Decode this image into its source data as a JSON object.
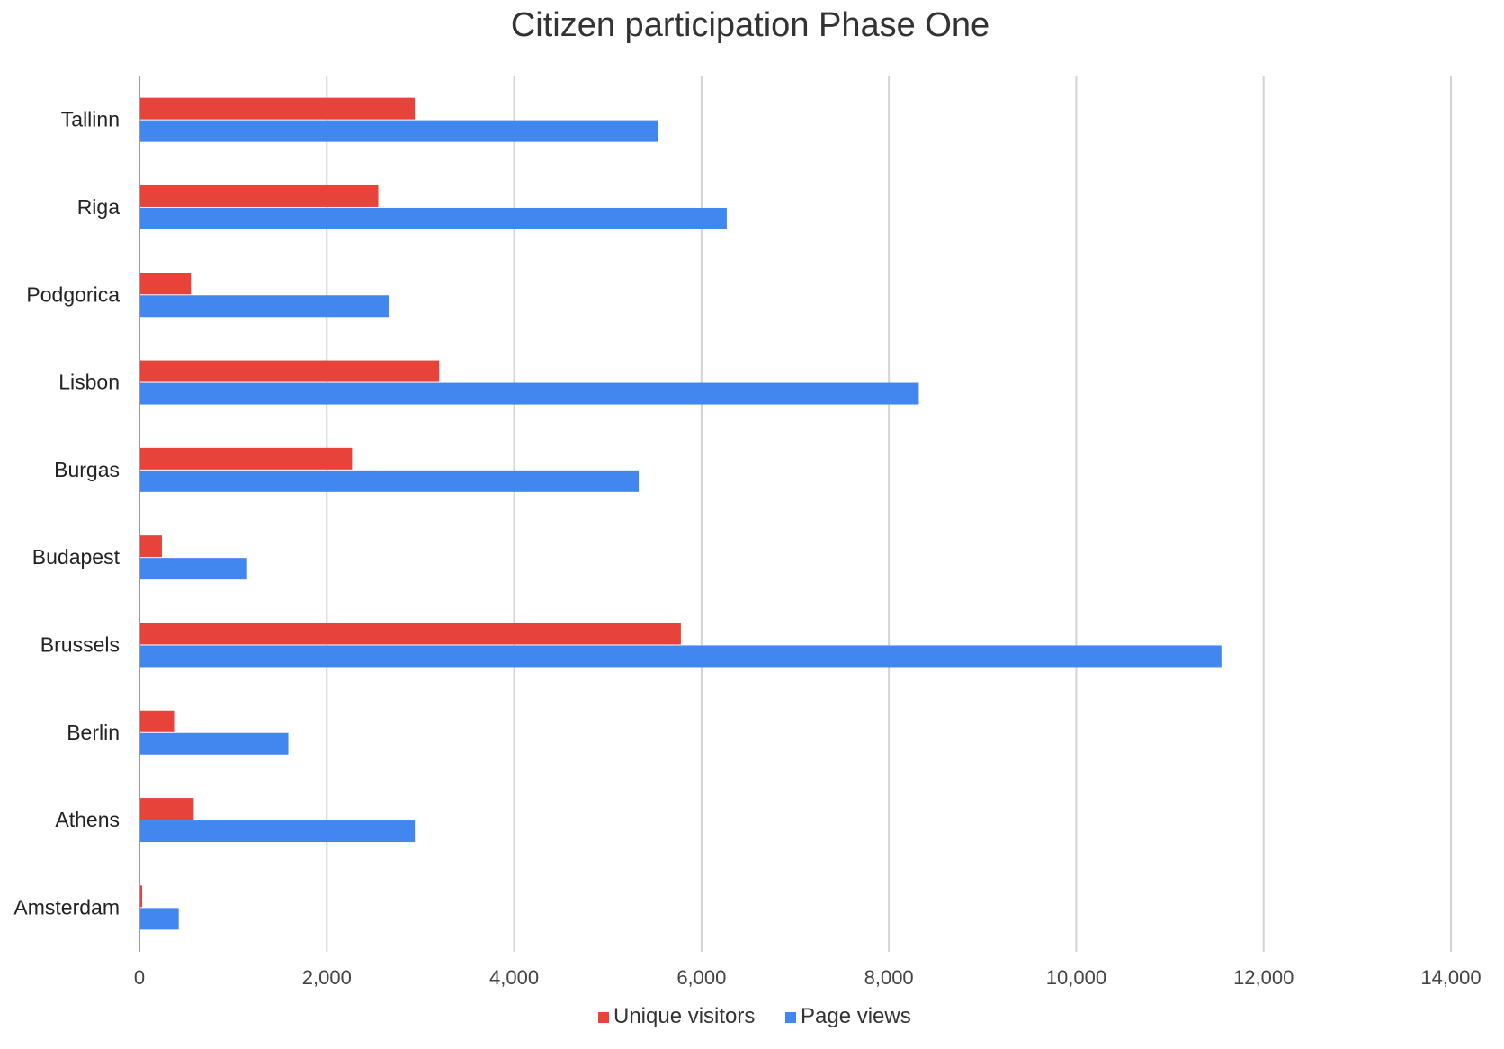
{
  "chart_data": {
    "type": "bar",
    "orientation": "horizontal",
    "title": "Citizen participation Phase One",
    "xlabel": "",
    "ylabel": "",
    "categories": [
      "Tallinn",
      "Riga",
      "Podgorica",
      "Lisbon",
      "Burgas",
      "Budapest",
      "Brussels",
      "Berlin",
      "Athens",
      "Amsterdam"
    ],
    "series": [
      {
        "name": "Unique visitors",
        "color": "#e8433b",
        "values": [
          2930,
          2540,
          540,
          3190,
          2260,
          230,
          5770,
          360,
          570,
          20
        ]
      },
      {
        "name": "Page views",
        "color": "#4286f0",
        "values": [
          5530,
          6260,
          2650,
          8310,
          5320,
          1140,
          11540,
          1580,
          2930,
          410
        ]
      }
    ],
    "xlim": [
      0,
      14000
    ],
    "xticks": [
      0,
      2000,
      4000,
      6000,
      8000,
      10000,
      12000,
      14000
    ],
    "xtick_labels": [
      "0",
      "2,000",
      "4,000",
      "6,000",
      "8,000",
      "10,000",
      "12,000",
      "14,000"
    ],
    "grid": true,
    "legend_position": "bottom"
  }
}
